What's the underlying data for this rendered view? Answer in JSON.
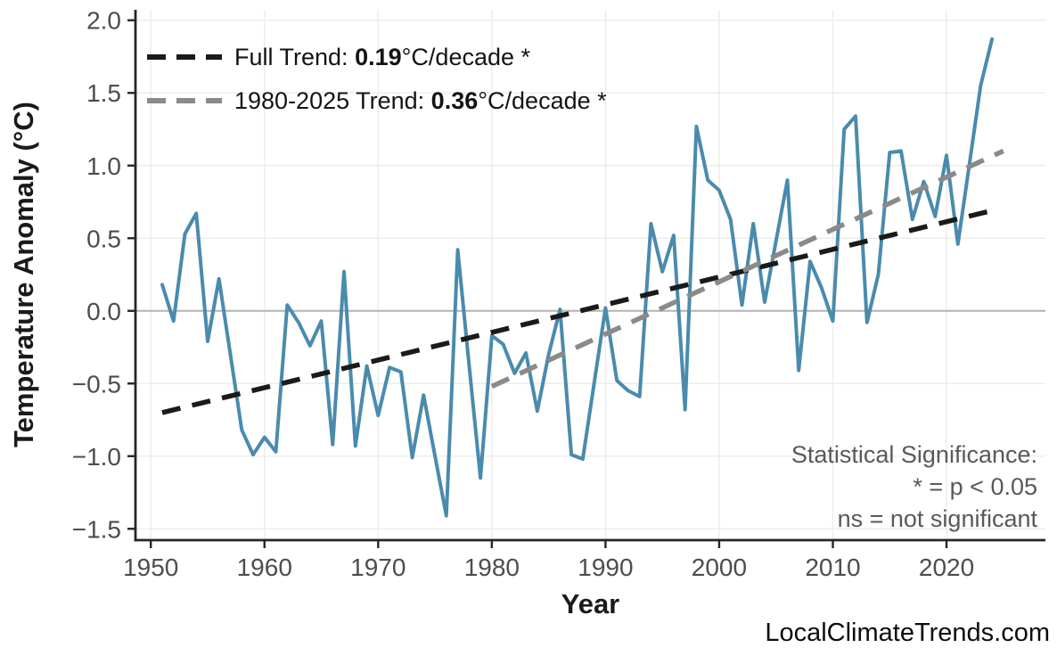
{
  "watermark": "LocalClimateTrends.com",
  "axes": {
    "xlabel": "Year",
    "ylabel": "Temperature Anomaly (°C)"
  },
  "legend": {
    "items": [
      {
        "prefix": "Full Trend: ",
        "value": "0.19",
        "suffix": "°C/decade *"
      },
      {
        "prefix": "1980-2025 Trend: ",
        "value": "0.36",
        "suffix": "°C/decade *"
      }
    ]
  },
  "significance": {
    "line1": "Statistical Significance:",
    "line2": "* = p < 0.05",
    "line3": "ns = not significant"
  },
  "chart_data": {
    "type": "line",
    "title": "",
    "xlabel": "Year",
    "ylabel": "Temperature Anomaly (°C)",
    "xlim": [
      1948.65,
      2028.7
    ],
    "ylim": [
      -1.578,
      2.072
    ],
    "x_ticks": [
      1950,
      1960,
      1970,
      1980,
      1990,
      2000,
      2010,
      2020
    ],
    "y_ticks": [
      2.0,
      1.5,
      1.0,
      0.5,
      0.0,
      -0.5,
      -1.0,
      -1.5
    ],
    "y_tick_labels": [
      "2.0",
      "1.5",
      "1.0",
      "0.5",
      "0.0",
      "−0.5",
      "−1.0",
      "−1.5"
    ],
    "grid": true,
    "legend_position": "top-left",
    "series": [
      {
        "name": "annual-temperature-anomaly",
        "type": "line",
        "color": "#4A8BAD",
        "width": 4,
        "x": [
          1951,
          1952,
          1953,
          1954,
          1955,
          1956,
          1957,
          1958,
          1959,
          1960,
          1961,
          1962,
          1963,
          1964,
          1965,
          1966,
          1967,
          1968,
          1969,
          1970,
          1971,
          1972,
          1973,
          1974,
          1975,
          1976,
          1977,
          1978,
          1979,
          1980,
          1981,
          1982,
          1983,
          1984,
          1985,
          1986,
          1987,
          1988,
          1989,
          1990,
          1991,
          1992,
          1993,
          1994,
          1995,
          1996,
          1997,
          1998,
          1999,
          2000,
          2001,
          2002,
          2003,
          2004,
          2005,
          2006,
          2007,
          2008,
          2009,
          2010,
          2011,
          2012,
          2013,
          2014,
          2015,
          2016,
          2017,
          2018,
          2019,
          2020,
          2021,
          2022,
          2023,
          2024
        ],
        "y": [
          0.18,
          -0.07,
          0.53,
          0.67,
          -0.21,
          0.22,
          -0.3,
          -0.82,
          -0.99,
          -0.87,
          -0.97,
          0.04,
          -0.08,
          -0.24,
          -0.07,
          -0.92,
          0.27,
          -0.93,
          -0.38,
          -0.72,
          -0.39,
          -0.42,
          -1.01,
          -0.58,
          -1.0,
          -1.41,
          0.42,
          -0.37,
          -1.15,
          -0.17,
          -0.23,
          -0.43,
          -0.29,
          -0.69,
          -0.3,
          0.01,
          -0.99,
          -1.02,
          -0.5,
          0.02,
          -0.48,
          -0.55,
          -0.59,
          0.6,
          0.27,
          0.52,
          -0.68,
          1.27,
          0.9,
          0.83,
          0.63,
          0.04,
          0.6,
          0.06,
          0.48,
          0.9,
          -0.41,
          0.34,
          0.16,
          -0.07,
          1.25,
          1.34,
          -0.08,
          0.25,
          1.09,
          1.1,
          0.63,
          0.89,
          0.65,
          1.07,
          0.46,
          1.0,
          1.55,
          1.87
        ]
      },
      {
        "name": "full-trend",
        "label": "Full Trend: 0.19°C/decade *",
        "type": "trend",
        "color": "#1A1A1A",
        "width": 5.5,
        "dash": [
          21,
          13.5
        ],
        "slope_per_decade": 0.19,
        "significant": true,
        "x": [
          1951,
          2024
        ],
        "y": [
          -0.7,
          0.69
        ]
      },
      {
        "name": "trend-1980-2025",
        "label": "1980-2025 Trend: 0.36°C/decade *",
        "type": "trend",
        "color": "#8A8A8A",
        "width": 5.5,
        "dash": [
          21,
          13.5
        ],
        "slope_per_decade": 0.36,
        "significant": true,
        "x": [
          1980,
          2025
        ],
        "y": [
          -0.52,
          1.1
        ]
      }
    ],
    "annotations": [
      "Statistical Significance:",
      "* = p < 0.05",
      "ns = not significant"
    ],
    "watermark": "LocalClimateTrends.com"
  }
}
